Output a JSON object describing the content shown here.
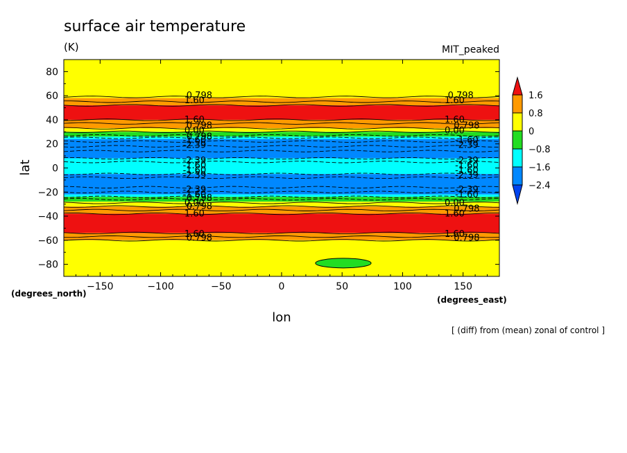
{
  "chart_data": {
    "type": "heatmap",
    "title": "surface air temperature",
    "units": "(K)",
    "dataset": "MIT_peaked",
    "xlabel": "lon",
    "ylabel": "lat",
    "x_units": "(degrees_east)",
    "y_units": "(degrees_north)",
    "note": "[ (diff) from (mean) zonal of control ]",
    "xlim": [
      -180,
      180
    ],
    "ylim": [
      -90,
      90
    ],
    "x_ticks": [
      -150,
      -100,
      -50,
      0,
      50,
      100,
      150
    ],
    "y_ticks": [
      -80,
      -60,
      -40,
      -20,
      0,
      20,
      40,
      60,
      80
    ],
    "colorbar": {
      "levels": [
        "1.6",
        "0.8",
        "0",
        "-0.8",
        "-1.6",
        "-2.4"
      ],
      "colors": [
        "#ee1111",
        "#ff9a00",
        "#ffff00",
        "#22dd22",
        "#00ffff",
        "#0088ff",
        "#0044ee"
      ]
    },
    "bands": [
      {
        "lat_min": 58,
        "lat_max": 90,
        "value": "0 to 0.8",
        "color": "#ffff00"
      },
      {
        "lat_min": 52,
        "lat_max": 58,
        "value": "0.8 to 1.6",
        "color": "#ff9a00"
      },
      {
        "lat_min": 40,
        "lat_max": 52,
        "value": "> 1.6",
        "color": "#ee1111"
      },
      {
        "lat_min": 33,
        "lat_max": 40,
        "value": "0.8 to 1.6",
        "color": "#ff9a00"
      },
      {
        "lat_min": 30,
        "lat_max": 33,
        "value": "0 to 0.8",
        "color": "#ffff00"
      },
      {
        "lat_min": 26,
        "lat_max": 30,
        "value": "-0.8 to 0",
        "color": "#22dd22"
      },
      {
        "lat_min": 24,
        "lat_max": 26,
        "value": "-1.6 to -0.8",
        "color": "#00ffff"
      },
      {
        "lat_min": 8,
        "lat_max": 24,
        "value": "-2.4 to -1.6",
        "color": "#0088ff"
      },
      {
        "lat_min": -5,
        "lat_max": 8,
        "value": "-1.6 to -0.8",
        "color": "#00ffff"
      },
      {
        "lat_min": -22,
        "lat_max": -5,
        "value": "-2.4 to -1.6",
        "color": "#0088ff"
      },
      {
        "lat_min": -24,
        "lat_max": -22,
        "value": "-1.6 to -0.8",
        "color": "#00ffff"
      },
      {
        "lat_min": -28,
        "lat_max": -24,
        "value": "-0.8 to 0",
        "color": "#22dd22"
      },
      {
        "lat_min": -32,
        "lat_max": -28,
        "value": "0 to 0.8",
        "color": "#ffff00"
      },
      {
        "lat_min": -38,
        "lat_max": -32,
        "value": "0.8 to 1.6",
        "color": "#ff9a00"
      },
      {
        "lat_min": -54,
        "lat_max": -38,
        "value": "> 1.6",
        "color": "#ee1111"
      },
      {
        "lat_min": -60,
        "lat_max": -54,
        "value": "0.8 to 1.6",
        "color": "#ff9a00"
      },
      {
        "lat_min": -90,
        "lat_max": -60,
        "value": "0 to 0.8",
        "color": "#ffff00"
      }
    ],
    "blob": {
      "lon_min": 28,
      "lon_max": 74,
      "lat_min": -83,
      "lat_max": -75,
      "value": "-0.8 to 0",
      "color": "#22dd22"
    },
    "contour_lines": [
      {
        "lat": 59,
        "style": "solid"
      },
      {
        "lat": 55,
        "style": "solid"
      },
      {
        "lat": 52,
        "style": "solid"
      },
      {
        "lat": 40,
        "style": "solid"
      },
      {
        "lat": 37,
        "style": "solid"
      },
      {
        "lat": 33,
        "style": "solid"
      },
      {
        "lat": 30,
        "style": "solid"
      },
      {
        "lat": 27,
        "style": "dash"
      },
      {
        "lat": 25,
        "style": "dash"
      },
      {
        "lat": 22,
        "style": "dash"
      },
      {
        "lat": 18,
        "style": "dash"
      },
      {
        "lat": 14,
        "style": "dash"
      },
      {
        "lat": 8,
        "style": "dash"
      },
      {
        "lat": 5,
        "style": "dash"
      },
      {
        "lat": -5,
        "style": "dash"
      },
      {
        "lat": -8,
        "style": "dash"
      },
      {
        "lat": -16,
        "style": "dash"
      },
      {
        "lat": -20,
        "style": "dash"
      },
      {
        "lat": -24,
        "style": "dash"
      },
      {
        "lat": -26,
        "style": "dash"
      },
      {
        "lat": -29,
        "style": "solid"
      },
      {
        "lat": -32,
        "style": "solid"
      },
      {
        "lat": -35,
        "style": "solid"
      },
      {
        "lat": -38,
        "style": "solid"
      },
      {
        "lat": -54,
        "style": "solid"
      },
      {
        "lat": -57,
        "style": "solid"
      },
      {
        "lat": -60,
        "style": "solid"
      }
    ],
    "contour_labels": [
      {
        "text": "0.798",
        "lat": 60,
        "lon": -68
      },
      {
        "text": "0.798",
        "lat": 60,
        "lon": 148
      },
      {
        "text": "1.60",
        "lat": 56,
        "lon": -72
      },
      {
        "text": "1.60",
        "lat": 56,
        "lon": 143
      },
      {
        "text": "1.60",
        "lat": 40,
        "lon": -72
      },
      {
        "text": "1.60",
        "lat": 40,
        "lon": 143
      },
      {
        "text": "0.798",
        "lat": 35,
        "lon": -68
      },
      {
        "text": "0.798",
        "lat": 35,
        "lon": 153
      },
      {
        "text": "0.00",
        "lat": 31,
        "lon": -72
      },
      {
        "text": "0.00",
        "lat": 31,
        "lon": 143
      },
      {
        "text": "0.798",
        "lat": 26,
        "lon": -68
      },
      {
        "text": "-1.60",
        "lat": 23,
        "lon": -72
      },
      {
        "text": "-1.60",
        "lat": 23,
        "lon": 153
      },
      {
        "text": "-2.39",
        "lat": 19,
        "lon": -72
      },
      {
        "text": "-2.39",
        "lat": 19,
        "lon": 153
      },
      {
        "text": "-2.39",
        "lat": 6,
        "lon": -72
      },
      {
        "text": "-2.39",
        "lat": 6,
        "lon": 153
      },
      {
        "text": "-1.60",
        "lat": 2,
        "lon": -72
      },
      {
        "text": "-1.60",
        "lat": 2,
        "lon": 153
      },
      {
        "text": "-1.60",
        "lat": -2,
        "lon": -72
      },
      {
        "text": "-1.60",
        "lat": -2,
        "lon": 153
      },
      {
        "text": "-2.39",
        "lat": -6,
        "lon": -72
      },
      {
        "text": "-2.39",
        "lat": -6,
        "lon": 153
      },
      {
        "text": "-2.39",
        "lat": -18,
        "lon": -72
      },
      {
        "text": "-2.39",
        "lat": -18,
        "lon": 153
      },
      {
        "text": "-1.60",
        "lat": -22,
        "lon": -72
      },
      {
        "text": "-1.60",
        "lat": -22,
        "lon": 153
      },
      {
        "text": "0.798",
        "lat": -25,
        "lon": -68
      },
      {
        "text": "0.00",
        "lat": -29,
        "lon": -72
      },
      {
        "text": "0.00",
        "lat": -29,
        "lon": 143
      },
      {
        "text": "0.798",
        "lat": -32,
        "lon": -68
      },
      {
        "text": "0.798",
        "lat": -34,
        "lon": 153
      },
      {
        "text": "1.60",
        "lat": -38,
        "lon": -72
      },
      {
        "text": "1.60",
        "lat": -38,
        "lon": 143
      },
      {
        "text": "1.60",
        "lat": -55,
        "lon": -72
      },
      {
        "text": "1.60",
        "lat": -55,
        "lon": 143
      },
      {
        "text": "0.798",
        "lat": -58,
        "lon": -68
      },
      {
        "text": "0.798",
        "lat": -58,
        "lon": 153
      }
    ]
  }
}
